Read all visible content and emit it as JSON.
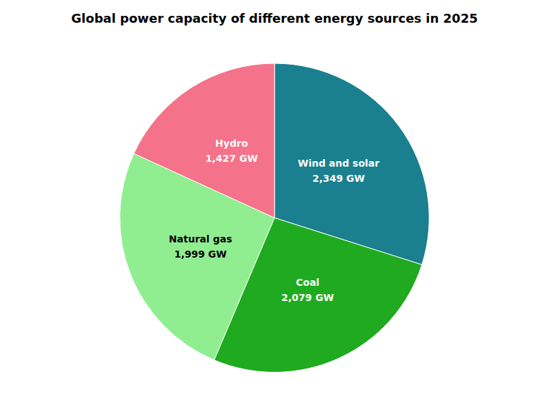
{
  "chart_data": {
    "type": "pie",
    "title": "Global power capacity of different energy sources in 2025",
    "categories": [
      "Wind and solar",
      "Coal",
      "Natural gas",
      "Hydro"
    ],
    "values": [
      2349,
      2079,
      1999,
      1427
    ],
    "value_labels": [
      "2,349 GW",
      "2,079 GW",
      "1,999 GW",
      "1,427 GW"
    ],
    "colors": [
      "#1a7f8e",
      "#1faa1f",
      "#90ee90",
      "#f4728a"
    ],
    "data_labels": true
  }
}
